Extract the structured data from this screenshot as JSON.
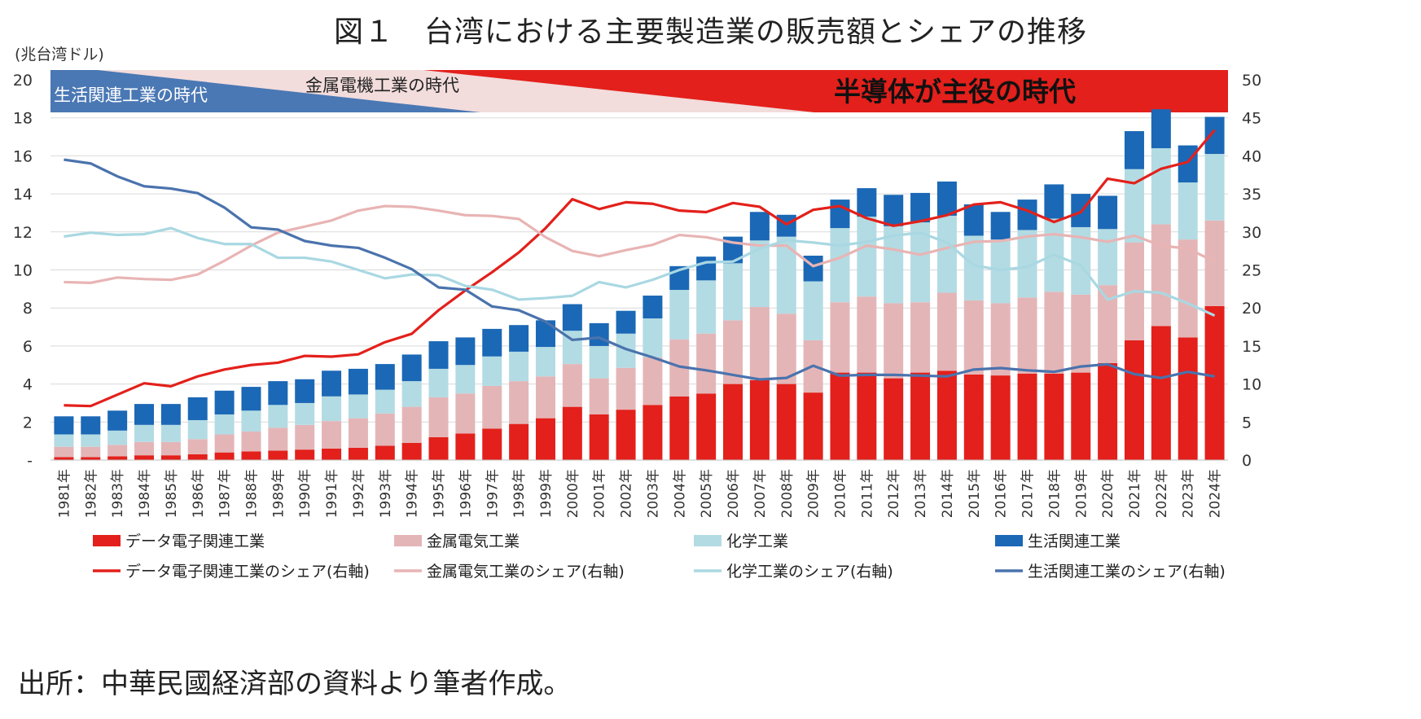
{
  "title": "図１　台湾における主要製造業の販売額とシェアの推移",
  "source": "出所：中華民國経済部の資料より筆者作成。",
  "chart_data": {
    "type": "bar",
    "stacked": true,
    "ylabel": "(兆台湾ドル)",
    "ylim": [
      0,
      20
    ],
    "y2lim": [
      0,
      50
    ],
    "y_ticks": [
      "-",
      "2",
      "4",
      "6",
      "8",
      "10",
      "12",
      "14",
      "16",
      "18",
      "20"
    ],
    "y2_ticks": [
      "0",
      "5",
      "10",
      "15",
      "20",
      "25",
      "30",
      "35",
      "40",
      "45",
      "50"
    ],
    "grid": true,
    "legend_position": "bottom",
    "colors": {
      "electronics": "#e3201b",
      "metal": "#e4b5b7",
      "chemical": "#b3dbe3",
      "living": "#1b68b6",
      "electronics_line": "#e3201b",
      "metal_line": "#e8b4b4",
      "chemical_line": "#a9d8e2",
      "living_line": "#4a73ad",
      "era_living": "#4a78b4",
      "era_metal": "#f2dcdc",
      "era_semi": "#e3201b"
    },
    "eras": [
      {
        "label": "生活関連工業の時代"
      },
      {
        "label": "金属電機工業の時代"
      },
      {
        "label": "半導体が主役の時代"
      }
    ],
    "categories": [
      "1981年",
      "1982年",
      "1983年",
      "1984年",
      "1985年",
      "1986年",
      "1987年",
      "1988年",
      "1989年",
      "1990年",
      "1991年",
      "1992年",
      "1993年",
      "1994年",
      "1995年",
      "1996年",
      "1997年",
      "1998年",
      "1999年",
      "2000年",
      "2001年",
      "2002年",
      "2003年",
      "2004年",
      "2005年",
      "2006年",
      "2007年",
      "2008年",
      "2009年",
      "2010年",
      "2011年",
      "2012年",
      "2013年",
      "2014年",
      "2015年",
      "2016年",
      "2017年",
      "2018年",
      "2019年",
      "2020年",
      "2021年",
      "2022年",
      "2023年",
      "2024年"
    ],
    "series": [
      {
        "name": "データ電子関連工業",
        "axis": "left",
        "kind": "bar",
        "color_key": "electronics",
        "values": [
          0.15,
          0.15,
          0.2,
          0.25,
          0.25,
          0.3,
          0.4,
          0.45,
          0.5,
          0.55,
          0.6,
          0.65,
          0.75,
          0.9,
          1.2,
          1.4,
          1.65,
          1.9,
          2.2,
          2.8,
          2.4,
          2.65,
          2.9,
          3.35,
          3.5,
          4.0,
          4.2,
          4.0,
          3.55,
          4.6,
          4.6,
          4.3,
          4.6,
          4.7,
          4.5,
          4.45,
          4.55,
          4.55,
          4.6,
          5.1,
          6.3,
          7.05,
          6.45,
          8.1
        ]
      },
      {
        "name": "金属電気工業",
        "axis": "left",
        "kind": "bar",
        "color_key": "metal",
        "values": [
          0.55,
          0.55,
          0.6,
          0.7,
          0.7,
          0.8,
          0.95,
          1.05,
          1.2,
          1.3,
          1.45,
          1.55,
          1.7,
          1.9,
          2.1,
          2.1,
          2.25,
          2.25,
          2.2,
          2.25,
          1.9,
          2.2,
          2.5,
          3.0,
          3.15,
          3.35,
          3.85,
          3.7,
          2.75,
          3.7,
          4.0,
          3.95,
          3.7,
          4.1,
          3.9,
          3.8,
          4.0,
          4.3,
          4.1,
          4.1,
          5.15,
          5.35,
          5.15,
          4.5
        ]
      },
      {
        "name": "化学工業",
        "axis": "left",
        "kind": "bar",
        "color_key": "chemical",
        "values": [
          0.65,
          0.65,
          0.75,
          0.9,
          0.9,
          1.0,
          1.05,
          1.1,
          1.2,
          1.15,
          1.3,
          1.25,
          1.25,
          1.35,
          1.5,
          1.5,
          1.55,
          1.55,
          1.55,
          1.75,
          1.7,
          1.8,
          2.05,
          2.6,
          2.8,
          3.0,
          3.5,
          4.05,
          3.1,
          3.9,
          4.2,
          4.05,
          4.2,
          4.05,
          3.4,
          3.35,
          3.55,
          3.85,
          3.55,
          2.95,
          3.85,
          4.0,
          3.0,
          3.5
        ]
      },
      {
        "name": "生活関連工業",
        "axis": "left",
        "kind": "bar",
        "color_key": "living",
        "values": [
          0.95,
          0.95,
          1.05,
          1.1,
          1.1,
          1.2,
          1.25,
          1.25,
          1.25,
          1.25,
          1.35,
          1.35,
          1.35,
          1.4,
          1.45,
          1.45,
          1.45,
          1.4,
          1.4,
          1.4,
          1.2,
          1.2,
          1.2,
          1.25,
          1.25,
          1.4,
          1.5,
          1.15,
          1.35,
          1.5,
          1.5,
          1.65,
          1.55,
          1.8,
          1.65,
          1.45,
          1.6,
          1.8,
          1.75,
          1.75,
          2.0,
          2.05,
          1.95,
          1.95
        ]
      },
      {
        "name": "データ電子関連工業のシェア(右軸)",
        "axis": "right",
        "kind": "line",
        "color_key": "electronics_line",
        "values": [
          7.2,
          7.1,
          8.6,
          10.1,
          9.7,
          11.0,
          11.9,
          12.5,
          12.8,
          13.7,
          13.6,
          13.9,
          15.5,
          16.6,
          19.7,
          22.3,
          24.7,
          27.3,
          30.5,
          34.3,
          33.0,
          33.9,
          33.7,
          32.8,
          32.6,
          33.8,
          33.3,
          31.0,
          32.9,
          33.4,
          31.8,
          30.8,
          31.4,
          32.2,
          33.6,
          33.9,
          32.8,
          31.3,
          32.6,
          37.0,
          36.4,
          38.3,
          39.2,
          43.4
        ]
      },
      {
        "name": "金属電気工業のシェア(右軸)",
        "axis": "right",
        "kind": "line",
        "color_key": "metal_line",
        "values": [
          23.4,
          23.3,
          24.0,
          23.8,
          23.7,
          24.4,
          26.2,
          28.2,
          29.9,
          30.7,
          31.5,
          32.8,
          33.4,
          33.3,
          32.8,
          32.2,
          32.1,
          31.7,
          29.3,
          27.5,
          26.8,
          27.6,
          28.3,
          29.6,
          29.3,
          28.6,
          28.2,
          28.2,
          25.5,
          26.6,
          28.2,
          27.7,
          27.0,
          27.9,
          28.7,
          28.8,
          29.4,
          29.7,
          29.3,
          28.7,
          29.5,
          28.2,
          27.8,
          26.1
        ]
      },
      {
        "name": "化学工業のシェア(右軸)",
        "axis": "right",
        "kind": "line",
        "color_key": "chemical_line",
        "values": [
          29.4,
          29.9,
          29.6,
          29.7,
          30.5,
          29.2,
          28.4,
          28.4,
          26.6,
          26.6,
          26.1,
          25.0,
          23.9,
          24.4,
          24.3,
          22.9,
          22.4,
          21.1,
          21.3,
          21.6,
          23.4,
          22.7,
          23.7,
          25.0,
          26.0,
          26.1,
          27.8,
          28.9,
          28.6,
          28.2,
          28.7,
          29.5,
          29.9,
          28.6,
          25.6,
          25.0,
          25.4,
          27.0,
          25.6,
          21.1,
          22.2,
          22.0,
          20.6,
          19.0
        ]
      },
      {
        "name": "生活関連工業のシェア(右軸)",
        "axis": "right",
        "kind": "line",
        "color_key": "living_line",
        "values": [
          39.5,
          39.0,
          37.3,
          36.0,
          35.7,
          35.1,
          33.2,
          30.6,
          30.3,
          28.8,
          28.2,
          27.9,
          26.6,
          25.1,
          22.7,
          22.4,
          20.2,
          19.7,
          18.2,
          15.8,
          16.1,
          14.6,
          13.5,
          12.3,
          11.8,
          11.2,
          10.6,
          10.8,
          12.4,
          11.1,
          11.2,
          11.2,
          11.1,
          11.0,
          11.9,
          12.1,
          11.8,
          11.6,
          12.3,
          12.6,
          11.3,
          10.8,
          11.6,
          11.0
        ]
      }
    ]
  }
}
